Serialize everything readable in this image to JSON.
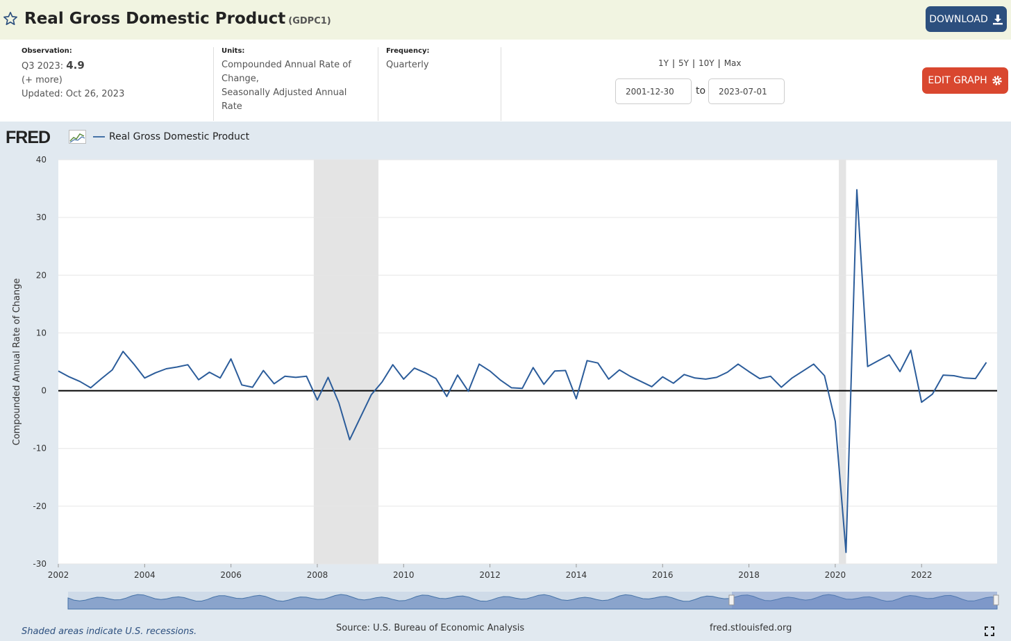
{
  "header": {
    "title": "Real Gross Domestic Product",
    "series_id": "(GDPC1)",
    "download_label": "DOWNLOAD"
  },
  "info": {
    "observation_label": "Observation:",
    "observation_period": "Q3 2023:",
    "observation_value": "4.9",
    "more": "(+ more)",
    "updated": "Updated: Oct 26, 2023",
    "units_label": "Units:",
    "units_lines": [
      "Compounded Annual Rate of",
      "Change,",
      "Seasonally Adjusted Annual",
      "Rate"
    ],
    "frequency_label": "Frequency:",
    "frequency": "Quarterly"
  },
  "range": {
    "buttons": [
      "1Y",
      "5Y",
      "10Y",
      "Max"
    ],
    "start": "2001-12-30",
    "to": "to",
    "end": "2023-07-01"
  },
  "edit_label": "EDIT GRAPH",
  "legend": {
    "logo": "FRED",
    "series": "Real Gross Domestic Product"
  },
  "footer": {
    "recession_note": "Shaded areas indicate U.S. recessions.",
    "source": "Source: U.S. Bureau of Economic Analysis",
    "site": "fred.stlouisfed.org"
  },
  "colors": {
    "line": "#2b5c9a",
    "header_bg": "#f1f4e1",
    "download": "#2c4f7e",
    "edit": "#d9472f",
    "recession": "#e4e4e4"
  },
  "chart_data": {
    "type": "line",
    "ylabel": "Compounded Annual Rate of Change",
    "ylim": [
      -30,
      40
    ],
    "yticks": [
      -30,
      -20,
      -10,
      0,
      10,
      20,
      30,
      40
    ],
    "xlim": [
      2002.0,
      2023.75
    ],
    "xticks": [
      2002,
      2004,
      2006,
      2008,
      2010,
      2012,
      2014,
      2016,
      2018,
      2020,
      2022
    ],
    "recessions": [
      [
        2007.917,
        2009.417
      ],
      [
        2020.083,
        2020.25
      ]
    ],
    "series": [
      {
        "name": "Real Gross Domestic Product",
        "x": [
          2002.0,
          2002.25,
          2002.5,
          2002.75,
          2003.0,
          2003.25,
          2003.5,
          2003.75,
          2004.0,
          2004.25,
          2004.5,
          2004.75,
          2005.0,
          2005.25,
          2005.5,
          2005.75,
          2006.0,
          2006.25,
          2006.5,
          2006.75,
          2007.0,
          2007.25,
          2007.5,
          2007.75,
          2008.0,
          2008.25,
          2008.5,
          2008.75,
          2009.0,
          2009.25,
          2009.5,
          2009.75,
          2010.0,
          2010.25,
          2010.5,
          2010.75,
          2011.0,
          2011.25,
          2011.5,
          2011.75,
          2012.0,
          2012.25,
          2012.5,
          2012.75,
          2013.0,
          2013.25,
          2013.5,
          2013.75,
          2014.0,
          2014.25,
          2014.5,
          2014.75,
          2015.0,
          2015.25,
          2015.5,
          2015.75,
          2016.0,
          2016.25,
          2016.5,
          2016.75,
          2017.0,
          2017.25,
          2017.5,
          2017.75,
          2018.0,
          2018.25,
          2018.5,
          2018.75,
          2019.0,
          2019.25,
          2019.5,
          2019.75,
          2020.0,
          2020.25,
          2020.5,
          2020.75,
          2021.0,
          2021.25,
          2021.5,
          2021.75,
          2022.0,
          2022.25,
          2022.5,
          2022.75,
          2023.0,
          2023.25,
          2023.5
        ],
        "values": [
          3.4,
          2.4,
          1.6,
          0.5,
          2.1,
          3.6,
          6.8,
          4.6,
          2.2,
          3.1,
          3.8,
          4.1,
          4.5,
          1.9,
          3.2,
          2.2,
          5.5,
          1.0,
          0.6,
          3.5,
          1.2,
          2.5,
          2.3,
          2.5,
          -1.6,
          2.3,
          -2.1,
          -8.5,
          -4.6,
          -0.7,
          1.5,
          4.5,
          2.0,
          3.9,
          3.1,
          2.1,
          -1.0,
          2.7,
          -0.1,
          4.6,
          3.4,
          1.8,
          0.5,
          0.4,
          4.0,
          1.1,
          3.4,
          3.5,
          -1.4,
          5.2,
          4.8,
          2.0,
          3.6,
          2.5,
          1.6,
          0.7,
          2.4,
          1.3,
          2.8,
          2.2,
          2.0,
          2.3,
          3.2,
          4.6,
          3.3,
          2.1,
          2.5,
          0.6,
          2.2,
          3.4,
          4.6,
          2.6,
          -5.3,
          -28.0,
          34.8,
          4.2,
          5.2,
          6.2,
          3.3,
          7.0,
          -2.0,
          -0.6,
          2.7,
          2.6,
          2.2,
          2.1,
          4.9
        ]
      }
    ]
  }
}
